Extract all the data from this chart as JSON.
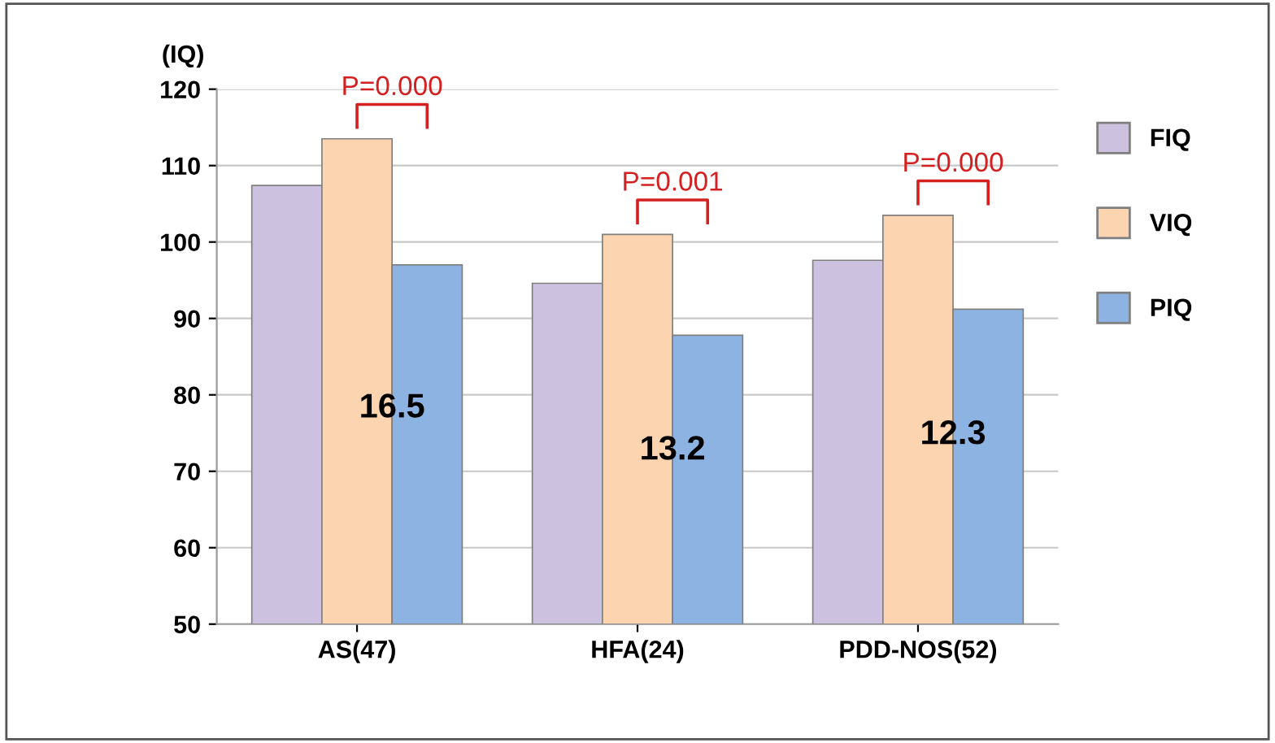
{
  "chart_data": {
    "type": "bar",
    "ylabel": "(IQ)",
    "categories": [
      "AS(47)",
      "HFA(24)",
      "PDD-NOS(52)"
    ],
    "series": [
      {
        "name": "FIQ",
        "color": "#ccc1de",
        "values": [
          107.4,
          94.6,
          97.6
        ]
      },
      {
        "name": "VIQ",
        "color": "#fcd5b0",
        "values": [
          113.5,
          101.0,
          103.5
        ]
      },
      {
        "name": "PIQ",
        "color": "#8db3e2",
        "values": [
          97.0,
          87.8,
          91.2
        ]
      }
    ],
    "ylim": [
      50,
      120
    ],
    "yticks": [
      50,
      60,
      70,
      80,
      90,
      100,
      110,
      120
    ],
    "grid": "y",
    "legend": "right",
    "annotations": [
      "P=0.000",
      "P=0.001",
      "P=0.000",
      "16.5",
      "13.2",
      "12.3"
    ]
  }
}
